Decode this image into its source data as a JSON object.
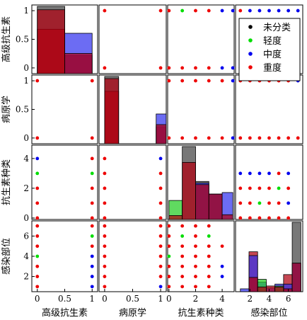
{
  "chart_data": {
    "type": "scatter",
    "variables": [
      "高级抗生素",
      "病原学",
      "抗生素种类",
      "感染部位"
    ],
    "ranges": [
      [
        -0.1,
        1.1
      ],
      [
        -0.1,
        1.1
      ],
      [
        -0.1,
        4.9
      ],
      [
        0.5,
        7.5
      ]
    ],
    "ticks": [
      [
        0,
        0.5,
        1
      ],
      [
        0,
        0.5,
        1
      ],
      [
        0,
        2,
        4
      ],
      [
        2,
        4,
        6
      ]
    ],
    "tick_labels": [
      [
        "0",
        "0.5",
        "1"
      ],
      [
        "0",
        "0.5",
        "1"
      ],
      [
        "0",
        "2",
        "4"
      ],
      [
        "2",
        "4",
        "6"
      ]
    ],
    "legend": {
      "position": "top-right",
      "entries": [
        {
          "label": "未分类",
          "color": "#000000"
        },
        {
          "label": "轻度",
          "color": "#00dd00"
        },
        {
          "label": "中度",
          "color": "#0000ee"
        },
        {
          "label": "重度",
          "color": "#ee0000"
        }
      ]
    },
    "scatter": [
      {
        "row": 0,
        "col": 1,
        "points": [
          [
            0,
            1,
            3
          ],
          [
            1,
            1,
            3
          ],
          [
            0,
            0,
            3
          ],
          [
            1,
            0,
            3
          ]
        ]
      },
      {
        "row": 0,
        "col": 2,
        "points": [
          [
            0,
            1,
            3
          ],
          [
            1,
            1,
            1
          ],
          [
            2,
            1,
            3
          ],
          [
            3,
            1,
            3
          ],
          [
            4,
            1,
            2
          ],
          [
            4.8,
            1,
            2
          ],
          [
            0,
            0,
            3
          ],
          [
            1,
            0,
            3
          ],
          [
            2,
            0,
            3
          ],
          [
            3,
            0,
            3
          ],
          [
            4,
            0,
            2
          ],
          [
            4.8,
            0,
            2
          ]
        ]
      },
      {
        "row": 0,
        "col": 3,
        "points": [
          [
            1,
            1,
            3
          ],
          [
            2,
            1,
            2
          ],
          [
            3,
            1,
            2
          ],
          [
            4,
            1,
            2
          ],
          [
            5,
            1,
            2
          ],
          [
            6,
            1,
            2
          ],
          [
            7,
            1,
            2
          ],
          [
            1,
            0,
            3
          ],
          [
            2,
            0,
            3
          ],
          [
            3,
            0,
            3
          ],
          [
            4,
            0,
            3
          ],
          [
            5,
            0,
            3
          ],
          [
            6,
            0,
            3
          ],
          [
            7,
            0,
            3
          ]
        ]
      },
      {
        "row": 1,
        "col": 0,
        "points": [
          [
            0,
            1,
            3
          ],
          [
            1,
            1,
            3
          ],
          [
            0,
            0,
            3
          ],
          [
            1,
            0,
            3
          ]
        ]
      },
      {
        "row": 1,
        "col": 2,
        "points": [
          [
            0,
            1,
            3
          ],
          [
            1,
            1,
            3
          ],
          [
            2,
            1,
            3
          ],
          [
            3,
            1,
            3
          ],
          [
            4,
            1,
            3
          ],
          [
            4.8,
            1,
            2
          ],
          [
            0,
            0,
            3
          ],
          [
            1,
            0,
            3
          ],
          [
            2,
            0,
            3
          ],
          [
            3,
            0,
            3
          ],
          [
            4,
            0,
            3
          ],
          [
            4.8,
            0,
            2
          ]
        ]
      },
      {
        "row": 1,
        "col": 3,
        "points": [
          [
            1,
            1,
            3
          ],
          [
            2,
            1,
            3
          ],
          [
            3,
            1,
            3
          ],
          [
            4,
            1,
            3
          ],
          [
            5,
            1,
            3
          ],
          [
            6,
            1,
            3
          ],
          [
            7,
            1,
            2
          ],
          [
            1,
            0,
            3
          ],
          [
            2,
            0,
            3
          ],
          [
            3,
            0,
            3
          ],
          [
            4,
            0,
            3
          ],
          [
            5,
            0,
            3
          ],
          [
            6,
            0,
            3
          ],
          [
            7,
            0,
            3
          ]
        ]
      },
      {
        "row": 2,
        "col": 0,
        "points": [
          [
            0,
            4,
            2
          ],
          [
            1,
            4,
            3
          ],
          [
            0,
            3,
            1
          ],
          [
            1,
            3,
            1
          ],
          [
            0,
            2,
            3
          ],
          [
            1,
            2,
            3
          ],
          [
            0,
            1,
            3
          ],
          [
            1,
            1,
            3
          ],
          [
            0,
            0,
            3
          ],
          [
            1,
            0,
            3
          ]
        ]
      },
      {
        "row": 2,
        "col": 1,
        "points": [
          [
            0,
            4,
            3
          ],
          [
            1,
            4,
            2
          ],
          [
            0,
            3,
            3
          ],
          [
            1,
            3,
            3
          ],
          [
            0,
            2,
            3
          ],
          [
            1,
            2,
            3
          ],
          [
            0,
            1,
            3
          ],
          [
            1,
            1,
            3
          ],
          [
            0,
            0,
            3
          ],
          [
            1,
            0,
            3
          ]
        ]
      },
      {
        "row": 2,
        "col": 3,
        "points": [
          [
            1,
            3,
            2
          ],
          [
            2,
            3,
            2
          ],
          [
            3,
            3,
            2
          ],
          [
            4,
            3,
            2
          ],
          [
            5,
            3,
            3
          ],
          [
            6,
            3,
            2
          ],
          [
            1,
            2,
            3
          ],
          [
            2,
            2,
            3
          ],
          [
            3,
            2,
            3
          ],
          [
            4,
            2,
            3
          ],
          [
            5,
            2,
            1
          ],
          [
            6,
            2,
            3
          ],
          [
            1,
            1,
            3
          ],
          [
            2,
            1,
            3
          ],
          [
            3,
            1,
            1
          ],
          [
            4,
            1,
            3
          ],
          [
            5,
            1,
            3
          ],
          [
            6,
            1,
            2
          ],
          [
            1,
            0,
            3
          ],
          [
            2,
            0,
            3
          ],
          [
            3,
            0,
            3
          ],
          [
            4,
            0,
            3
          ],
          [
            5,
            0,
            3
          ],
          [
            6,
            0,
            3
          ]
        ]
      },
      {
        "row": 3,
        "col": 0,
        "points": [
          [
            0,
            7,
            3
          ],
          [
            1,
            7,
            3
          ],
          [
            0,
            6,
            3
          ],
          [
            1,
            6,
            1
          ],
          [
            0,
            5,
            3
          ],
          [
            1,
            5,
            3
          ],
          [
            0,
            4,
            1
          ],
          [
            1,
            4,
            2
          ],
          [
            0,
            3,
            3
          ],
          [
            1,
            3,
            2
          ],
          [
            0,
            2,
            3
          ],
          [
            1,
            2,
            2
          ],
          [
            0,
            1,
            3
          ],
          [
            1,
            1,
            2
          ]
        ]
      },
      {
        "row": 3,
        "col": 1,
        "points": [
          [
            0,
            7,
            3
          ],
          [
            1,
            7,
            3
          ],
          [
            0,
            6,
            3
          ],
          [
            1,
            6,
            3
          ],
          [
            0,
            5,
            3
          ],
          [
            1,
            5,
            3
          ],
          [
            0,
            4,
            3
          ],
          [
            1,
            4,
            3
          ],
          [
            0,
            3,
            3
          ],
          [
            1,
            3,
            3
          ],
          [
            0,
            2,
            3
          ],
          [
            1,
            2,
            3
          ],
          [
            0,
            1,
            3
          ],
          [
            1,
            1,
            2
          ]
        ]
      },
      {
        "row": 3,
        "col": 2,
        "points": [
          [
            0,
            7,
            3
          ],
          [
            1,
            7,
            3
          ],
          [
            2,
            7,
            3
          ],
          [
            3,
            7,
            3
          ],
          [
            0,
            6,
            3
          ],
          [
            1,
            6,
            1
          ],
          [
            2,
            6,
            3
          ],
          [
            3,
            6,
            1
          ],
          [
            0,
            5,
            3
          ],
          [
            1,
            5,
            3
          ],
          [
            2,
            5,
            3
          ],
          [
            3,
            5,
            3
          ],
          [
            4,
            5,
            3
          ],
          [
            0,
            4,
            1
          ],
          [
            1,
            4,
            3
          ],
          [
            2,
            4,
            3
          ],
          [
            3,
            4,
            3
          ],
          [
            0,
            3,
            3
          ],
          [
            1,
            3,
            3
          ],
          [
            2,
            3,
            3
          ],
          [
            3,
            3,
            3
          ],
          [
            4,
            3,
            2
          ],
          [
            0,
            2,
            3
          ],
          [
            1,
            2,
            3
          ],
          [
            2,
            2,
            3
          ],
          [
            3,
            2,
            3
          ],
          [
            4,
            2,
            2
          ],
          [
            0,
            1,
            3
          ],
          [
            1,
            1,
            3
          ],
          [
            2,
            1,
            3
          ],
          [
            3,
            1,
            3
          ]
        ]
      }
    ],
    "histograms": [
      {
        "var": 0,
        "bins": [
          [
            0.0,
            0.5
          ],
          [
            0.5,
            1.0
          ]
        ],
        "series": [
          {
            "class": 0,
            "counts": [
              1.0,
              0.0
            ]
          },
          {
            "class": 3,
            "counts": [
              0.66,
              0.27
            ]
          },
          {
            "class": 2,
            "counts": [
              0.0,
              0.6
            ]
          },
          {
            "class": 1,
            "counts": [
              0.0,
              0.0
            ]
          },
          {
            "class": 3,
            "counts": [
              0.95,
              0.3
            ]
          }
        ]
      },
      {
        "var": 1,
        "bins": [
          [
            0.0,
            0.25
          ],
          [
            0.92,
            1.1
          ]
        ],
        "series": [
          {
            "class": 0,
            "counts": [
              0.95,
              0.0
            ]
          },
          {
            "class": 3,
            "counts": [
              0.74,
              0.24
            ]
          },
          {
            "class": 2,
            "counts": [
              0.0,
              0.42
            ]
          },
          {
            "class": 3,
            "counts": [
              0.92,
              0.27
            ]
          }
        ]
      },
      {
        "var": 2,
        "bins": [
          [
            0.0,
            1.0
          ],
          [
            1.0,
            2.0
          ],
          [
            2.0,
            3.0
          ],
          [
            3.0,
            4.0
          ],
          [
            4.0,
            4.8
          ]
        ],
        "series": [
          {
            "class": 1,
            "counts": [
              1.2,
              0.0,
              0.0,
              0.0,
              0.0
            ]
          },
          {
            "class": 0,
            "counts": [
              0.0,
              4.6,
              2.4,
              1.6,
              0.0
            ]
          },
          {
            "class": 2,
            "counts": [
              0.0,
              0.0,
              2.3,
              1.6,
              1.7
            ]
          },
          {
            "class": 3,
            "counts": [
              0.25,
              3.6,
              2.2,
              1.6,
              0.3
            ]
          }
        ]
      },
      {
        "var": 3,
        "bins": [
          [
            1.0,
            1.9
          ],
          [
            1.9,
            2.8
          ],
          [
            2.8,
            3.7
          ],
          [
            3.7,
            4.6
          ],
          [
            4.6,
            5.5
          ],
          [
            5.5,
            6.4
          ],
          [
            6.4,
            7.3
          ]
        ],
        "series": [
          {
            "class": 0,
            "counts": [
              0.0,
              0.0,
              0.0,
              0.0,
              0.0,
              0.0,
              7.3
            ]
          },
          {
            "class": 3,
            "counts": [
              0.0,
              4.2,
              0.0,
              0.0,
              0.0,
              1.8,
              0.0
            ]
          },
          {
            "class": 2,
            "counts": [
              0.3,
              3.8,
              1.0,
              0.4,
              0.8,
              0.8,
              3.0
            ]
          },
          {
            "class": 1,
            "counts": [
              0.0,
              0.0,
              1.3,
              0.0,
              0.6,
              0.0,
              0.0
            ]
          },
          {
            "class": 3,
            "counts": [
              0.0,
              1.5,
              0.5,
              0.6,
              0.5,
              0.3,
              3.0
            ]
          }
        ]
      }
    ],
    "colors": [
      "#000000",
      "#00dd00",
      "#0000ee",
      "#ee0000"
    ],
    "hist_fill_colors": [
      "#444444",
      "#22cc22",
      "#3333ee",
      "#b00010"
    ]
  }
}
